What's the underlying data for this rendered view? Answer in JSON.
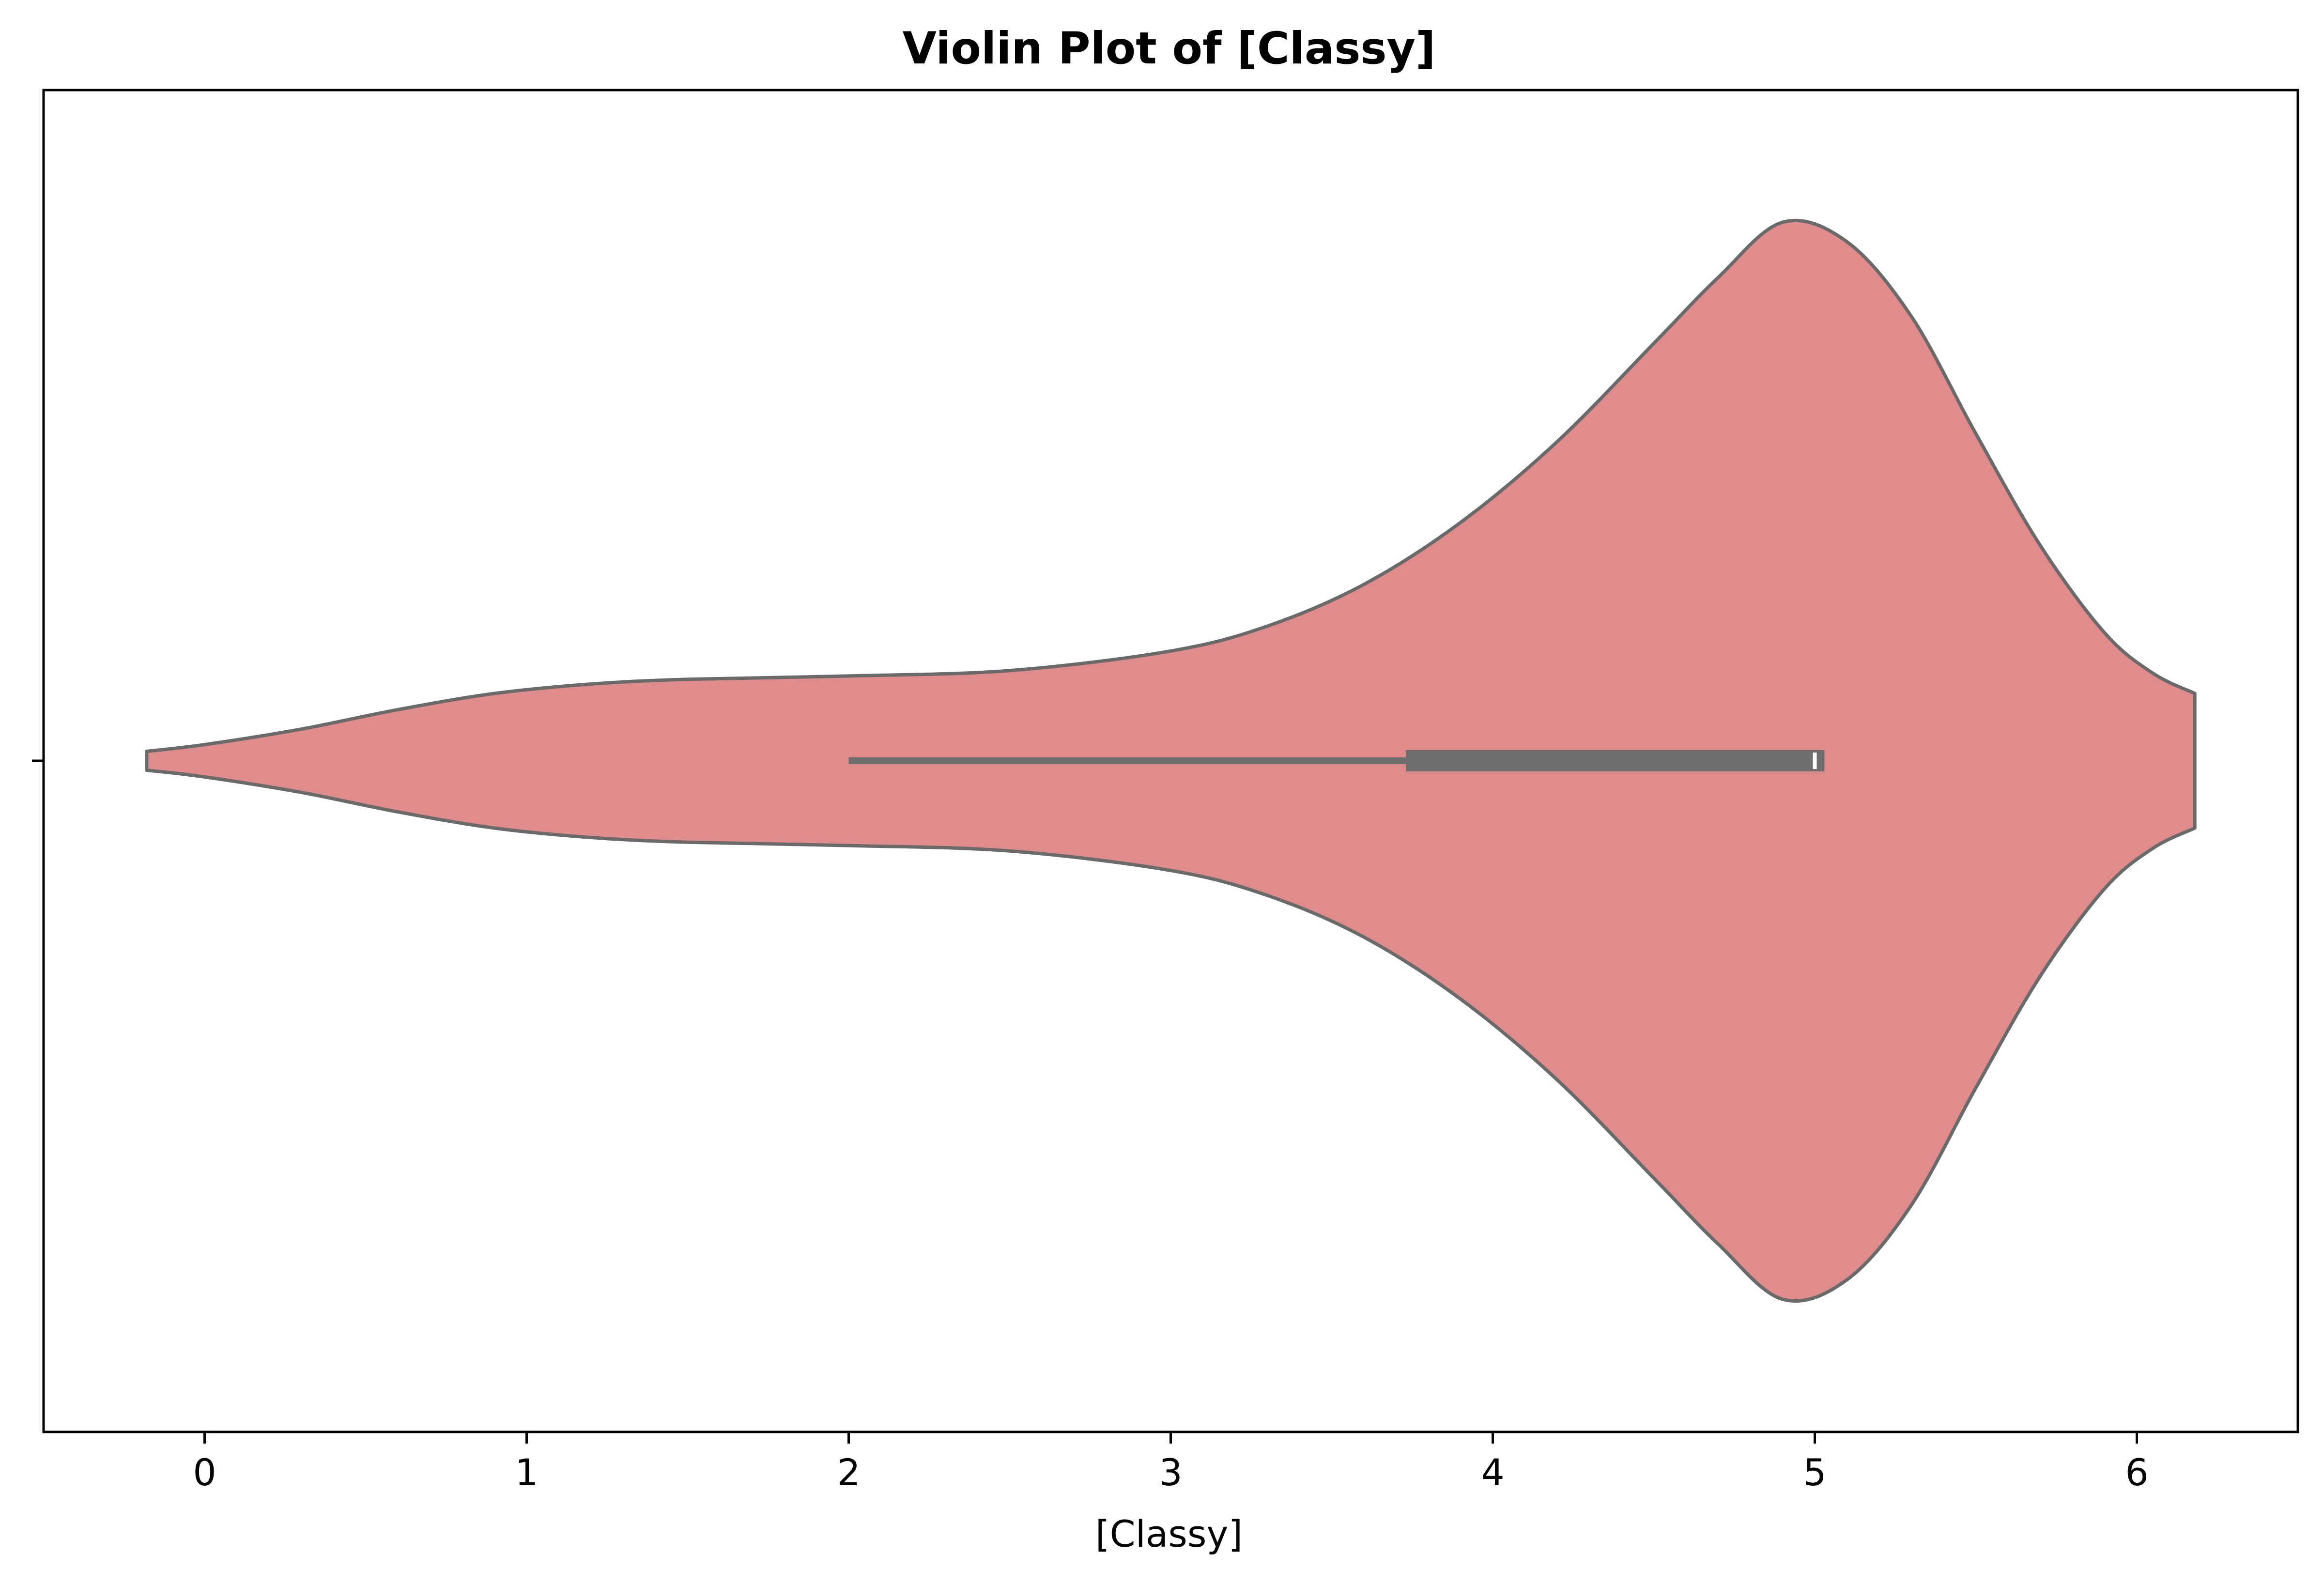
{
  "chart_data": {
    "type": "violin",
    "title": "Violin Plot of [Classy]",
    "xlabel": "[Classy]",
    "ylabel": "",
    "xlim": [
      -0.5,
      6.5
    ],
    "x_ticks": [
      0,
      1,
      2,
      3,
      4,
      5,
      6
    ],
    "x_tick_labels": [
      "0",
      "1",
      "2",
      "3",
      "4",
      "5",
      "6"
    ],
    "y_ticks": [
      0
    ],
    "y_tick_labels": [
      ""
    ],
    "grid": false,
    "legend": "none",
    "colors": {
      "violin_fill": "#e08c8c",
      "violin_edge": "#6a6a6a",
      "box": "#6e6e6e",
      "median": "#ffffff",
      "axes": "#000000"
    },
    "violin": {
      "support_min": -0.18,
      "support_max": 6.18,
      "density_profile": [
        {
          "value": -0.18,
          "half_width": 0.014
        },
        {
          "value": 0.0,
          "half_width": 0.024
        },
        {
          "value": 0.3,
          "half_width": 0.047
        },
        {
          "value": 0.6,
          "half_width": 0.076
        },
        {
          "value": 0.9,
          "half_width": 0.1
        },
        {
          "value": 1.2,
          "half_width": 0.114
        },
        {
          "value": 1.5,
          "half_width": 0.121
        },
        {
          "value": 2.0,
          "half_width": 0.126
        },
        {
          "value": 2.5,
          "half_width": 0.134
        },
        {
          "value": 3.0,
          "half_width": 0.163
        },
        {
          "value": 3.3,
          "half_width": 0.2
        },
        {
          "value": 3.6,
          "half_width": 0.262
        },
        {
          "value": 3.9,
          "half_width": 0.354
        },
        {
          "value": 4.2,
          "half_width": 0.474
        },
        {
          "value": 4.5,
          "half_width": 0.62
        },
        {
          "value": 4.7,
          "half_width": 0.718
        },
        {
          "value": 4.9,
          "half_width": 0.8
        },
        {
          "value": 5.1,
          "half_width": 0.771
        },
        {
          "value": 5.3,
          "half_width": 0.66
        },
        {
          "value": 5.5,
          "half_width": 0.486
        },
        {
          "value": 5.7,
          "half_width": 0.32
        },
        {
          "value": 5.9,
          "half_width": 0.19
        },
        {
          "value": 6.05,
          "half_width": 0.13
        },
        {
          "value": 6.18,
          "half_width": 0.1
        }
      ],
      "whisker_low": 2.0,
      "q1": 3.73,
      "median": 5.0,
      "q3": 5.03,
      "whisker_high": 5.03
    }
  }
}
